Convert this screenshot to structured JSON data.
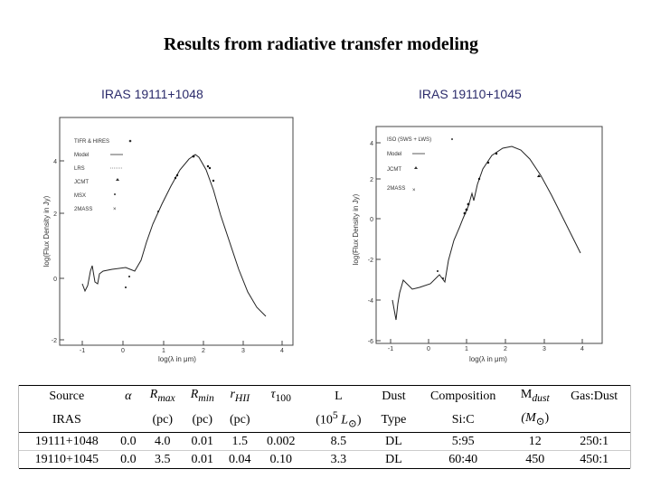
{
  "title": "Results from radiative transfer modeling",
  "plots": [
    {
      "label": "IRAS 19111+1048",
      "ylabel": "log(Flux Density in Jy)",
      "xlabel": "log(λ in μm)",
      "xticks": [
        "-1",
        "0",
        "1",
        "2",
        "3",
        "4"
      ],
      "yticks": [
        "4",
        "2",
        "0",
        "-2"
      ],
      "legend": [
        "TIFR & HIRES",
        "Model",
        "LRS",
        "JCMT",
        "MSX",
        "2MASS"
      ]
    },
    {
      "label": "IRAS 19110+1045",
      "ylabel": "log(Flux Density in Jy)",
      "xlabel": "log(λ in μm)",
      "xticks": [
        "-1",
        "0",
        "1",
        "2",
        "3",
        "4"
      ],
      "yticks": [
        "4",
        "2",
        "0",
        "-2",
        "-4",
        "-6"
      ],
      "legend": [
        "ISO (SWS + LWS)",
        "Model",
        "JCMT",
        "2MASS"
      ]
    }
  ],
  "table": {
    "header1": [
      "Source",
      "α",
      "R",
      "R",
      "r",
      "τ",
      "L",
      "Dust",
      "Composition",
      "M",
      "Gas:Dust"
    ],
    "subscripts": {
      "rmax": "max",
      "rmin": "min",
      "rhii": "HII",
      "tau": "100",
      "mdust": "dust"
    },
    "header2": [
      "IRAS",
      "",
      "(pc)",
      "(pc)",
      "(pc)",
      "",
      "(10",
      "5",
      "L",
      "⊙",
      ")",
      "Type",
      "Si:C",
      "(M",
      "⊙",
      ")",
      ""
    ],
    "rows": [
      [
        "19111+1048",
        "0.0",
        "4.0",
        "0.01",
        "1.5",
        "0.002",
        "8.5",
        "DL",
        "5:95",
        "12",
        "250:1"
      ],
      [
        "19110+1045",
        "0.0",
        "3.5",
        "0.01",
        "0.04",
        "0.10",
        "3.3",
        "DL",
        "60:40",
        "450",
        "450:1"
      ]
    ]
  }
}
